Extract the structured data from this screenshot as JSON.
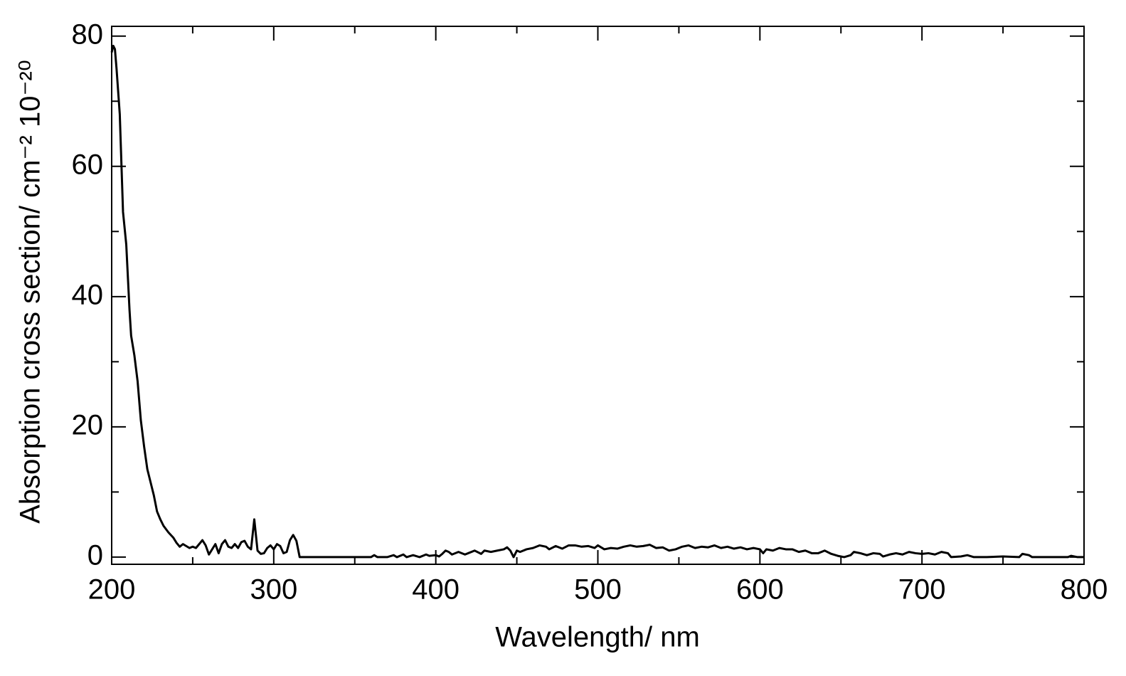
{
  "chart_data": {
    "type": "line",
    "xlabel": "Wavelength/ nm",
    "ylabel": "Absorption cross section/ cm⁻² 10⁻²⁰",
    "xlim": [
      200,
      800
    ],
    "ylim": [
      -1.1,
      81.5
    ],
    "xticks": [
      200,
      300,
      400,
      500,
      600,
      700,
      800
    ],
    "yticks": [
      0,
      20,
      40,
      60,
      80
    ],
    "xminorticks": [
      250,
      350,
      450,
      550,
      650,
      750
    ],
    "yminorticks": [
      10,
      30,
      50,
      70
    ],
    "color": "#000000",
    "x": [
      200,
      201,
      202,
      203,
      205,
      207,
      209,
      211,
      212,
      214,
      216,
      218,
      220,
      222,
      224,
      226,
      228,
      230,
      232,
      235,
      238,
      240,
      242,
      244,
      246,
      248,
      250,
      252,
      254,
      256,
      258,
      260,
      262,
      264,
      266,
      268,
      270,
      272,
      274,
      276,
      278,
      280,
      282,
      284,
      286,
      288,
      290,
      292,
      294,
      296,
      298,
      300,
      302,
      304,
      306,
      308,
      310,
      312,
      314,
      316,
      320,
      330,
      340,
      350,
      360,
      362,
      364,
      370,
      374,
      376,
      380,
      382,
      386,
      390,
      394,
      396,
      400,
      402,
      404,
      406,
      408,
      410,
      414,
      418,
      420,
      424,
      428,
      430,
      434,
      438,
      442,
      444,
      446,
      448,
      450,
      452,
      456,
      460,
      464,
      468,
      470,
      474,
      478,
      482,
      486,
      490,
      494,
      498,
      500,
      504,
      508,
      512,
      516,
      520,
      524,
      528,
      532,
      536,
      540,
      544,
      548,
      552,
      556,
      560,
      564,
      568,
      572,
      576,
      580,
      584,
      588,
      592,
      596,
      600,
      602,
      604,
      608,
      612,
      616,
      620,
      624,
      628,
      632,
      636,
      640,
      644,
      648,
      652,
      656,
      658,
      662,
      666,
      670,
      674,
      676,
      680,
      684,
      688,
      692,
      696,
      700,
      704,
      708,
      712,
      716,
      718,
      724,
      728,
      732,
      740,
      750,
      760,
      762,
      766,
      768,
      780,
      790,
      792,
      796,
      800
    ],
    "values": [
      77.5,
      78.5,
      78,
      75,
      68,
      53,
      48,
      38,
      34,
      31,
      27,
      21,
      17,
      13.5,
      11.5,
      9.5,
      7,
      5.8,
      4.8,
      3.8,
      3.0,
      2.2,
      1.6,
      2.0,
      1.7,
      1.4,
      1.6,
      1.4,
      2.0,
      2.6,
      1.8,
      0.4,
      1.2,
      2.0,
      0.6,
      2.0,
      2.6,
      1.6,
      1.4,
      2.0,
      1.4,
      2.3,
      2.5,
      1.6,
      1.2,
      5.8,
      1.0,
      0.5,
      0.6,
      1.4,
      1.8,
      1.2,
      2.0,
      1.7,
      0.6,
      0.8,
      2.6,
      3.4,
      2.5,
      0,
      0,
      0,
      0,
      0,
      0,
      0.3,
      0,
      0,
      0.3,
      0,
      0.4,
      0,
      0.3,
      0,
      0.4,
      0.2,
      0.3,
      0.1,
      0.5,
      1.0,
      0.8,
      0.4,
      0.8,
      0.4,
      0.6,
      1.0,
      0.5,
      1.0,
      0.8,
      1.0,
      1.2,
      1.5,
      1.0,
      0,
      1.0,
      0.8,
      1.2,
      1.4,
      1.8,
      1.6,
      1.2,
      1.7,
      1.3,
      1.8,
      1.8,
      1.6,
      1.7,
      1.4,
      1.8,
      1.2,
      1.4,
      1.3,
      1.6,
      1.8,
      1.6,
      1.7,
      1.9,
      1.4,
      1.5,
      1.0,
      1.2,
      1.6,
      1.8,
      1.4,
      1.6,
      1.5,
      1.8,
      1.4,
      1.6,
      1.3,
      1.5,
      1.2,
      1.4,
      1.2,
      0.6,
      1.2,
      1.0,
      1.4,
      1.2,
      1.2,
      0.8,
      1.0,
      0.6,
      0.6,
      1.0,
      0.5,
      0.2,
      0,
      0.3,
      0.8,
      0.6,
      0.3,
      0.6,
      0.5,
      0.1,
      0.4,
      0.6,
      0.4,
      0.8,
      0.6,
      0.5,
      0.6,
      0.4,
      0.8,
      0.6,
      0,
      0.1,
      0.3,
      0,
      0,
      0.1,
      0,
      0.5,
      0.3,
      0,
      0,
      0,
      0.2,
      0,
      0
    ]
  }
}
